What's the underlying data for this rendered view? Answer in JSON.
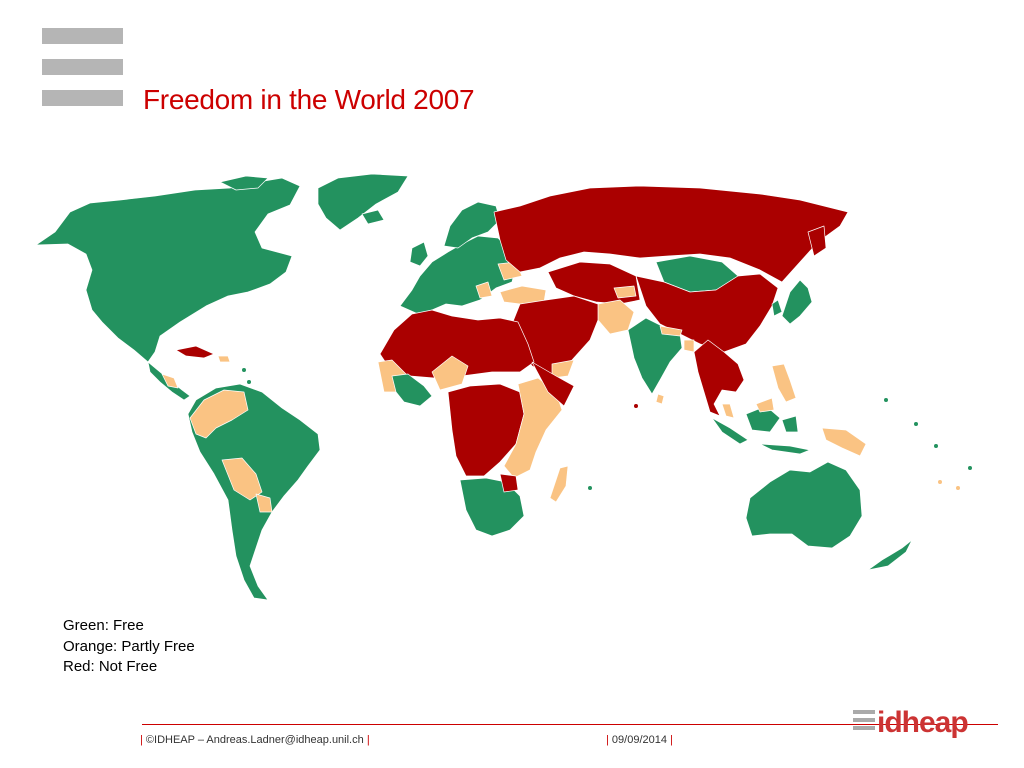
{
  "slide": {
    "title": "Freedom in the World 2007"
  },
  "legend": {
    "free": "Green: Free",
    "partly_free": "Orange: Partly Free",
    "not_free": "Red: Not Free"
  },
  "colors": {
    "free": "#23925f",
    "partly_free": "#fac383",
    "not_free": "#aa0000",
    "title": "#cc0000",
    "menu_bars": "#b5b5b5"
  },
  "footer": {
    "copyright": "©IDHEAP – Andreas.Ladner@idheap.unil.ch",
    "date": "09/09/2014",
    "pipe": "|"
  },
  "logo": {
    "text": "idheap"
  }
}
